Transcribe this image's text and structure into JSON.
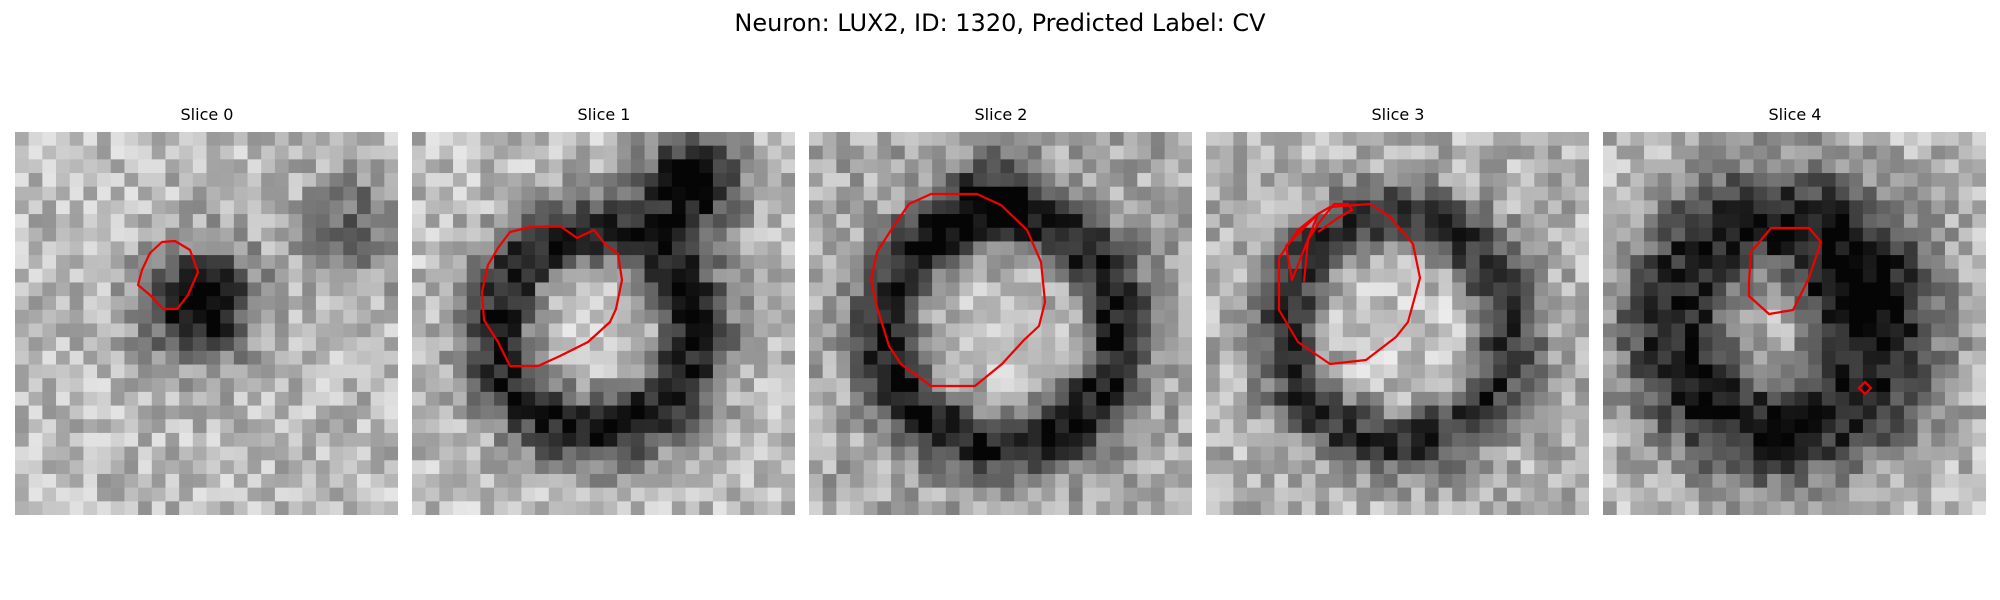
{
  "figure": {
    "title": "Neuron: LUX2, ID: 1320, Predicted Label: CV"
  },
  "panels": [
    {
      "title": "Slice 0"
    },
    {
      "title": "Slice 1"
    },
    {
      "title": "Slice 2"
    },
    {
      "title": "Slice 3"
    },
    {
      "title": "Slice 4"
    }
  ],
  "colors": {
    "contour": "#ee0000",
    "background": "#ffffff"
  }
}
